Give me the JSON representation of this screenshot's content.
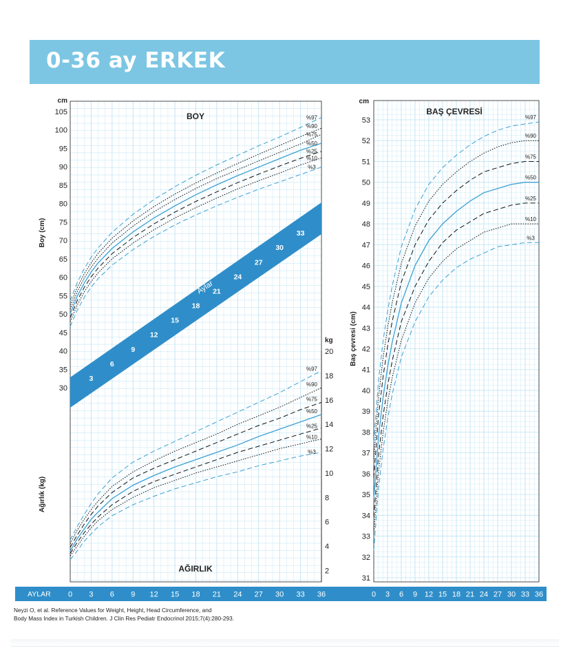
{
  "title": "0-36 ay ERKEK",
  "colors": {
    "banner": "#7cc6e3",
    "grid": "#bde3f3",
    "band": "#2f8ec9",
    "axis_bar": "#2f8ec9",
    "median_line": "#3a9fd3"
  },
  "bottom_axis": {
    "label": "AYLAR",
    "ticks": [
      "0",
      "3",
      "6",
      "9",
      "12",
      "15",
      "18",
      "21",
      "24",
      "27",
      "30",
      "33",
      "36"
    ]
  },
  "citation": {
    "line1": "Neyzi O, et al. Reference Values for Weight, Height, Head Circumference, and",
    "line2": "Body Mass Index in Turkish Children. J Clin Res Pediatr Endocrinol 2015;7(4):280-293."
  },
  "chart_data": [
    {
      "type": "line",
      "title": "BOY",
      "ylabel": "Boy (cm)",
      "yunit": "cm",
      "xlabel": "AYLAR",
      "xlim": [
        0,
        36
      ],
      "ylim": [
        25,
        105
      ],
      "yticks": [
        30,
        35,
        40,
        45,
        50,
        55,
        60,
        65,
        70,
        75,
        80,
        85,
        90,
        95,
        100,
        105
      ],
      "grid": true,
      "x": [
        0,
        1,
        2,
        3,
        4,
        6,
        9,
        12,
        15,
        18,
        21,
        24,
        27,
        30,
        33,
        36
      ],
      "series": [
        {
          "name": "%97",
          "style": "dashed",
          "values": [
            53.6,
            58.5,
            62.3,
            65.4,
            68.0,
            72.2,
            77.1,
            81.1,
            84.6,
            87.7,
            90.5,
            93.1,
            95.7,
            98.1,
            100.7,
            103.4
          ]
        },
        {
          "name": "%90",
          "style": "dotted",
          "values": [
            52.4,
            57.2,
            60.9,
            63.9,
            66.5,
            70.6,
            75.3,
            79.2,
            82.6,
            85.6,
            88.3,
            90.9,
            93.4,
            95.8,
            98.2,
            100.5
          ]
        },
        {
          "name": "%75",
          "style": "dotted",
          "values": [
            51.3,
            56.0,
            59.7,
            62.7,
            65.2,
            69.3,
            73.9,
            77.8,
            81.1,
            84.1,
            86.8,
            89.2,
            91.6,
            93.9,
            96.2,
            98.8
          ]
        },
        {
          "name": "%50",
          "style": "solid",
          "values": [
            50.1,
            54.8,
            58.4,
            61.4,
            63.9,
            67.8,
            72.3,
            76.1,
            79.4,
            82.4,
            85.1,
            87.6,
            89.9,
            92.2,
            94.5,
            96.4
          ]
        },
        {
          "name": "%25",
          "style": "dashed",
          "values": [
            49.0,
            53.6,
            57.2,
            60.1,
            62.5,
            66.4,
            70.8,
            74.5,
            77.7,
            80.6,
            83.2,
            85.7,
            88.0,
            90.2,
            92.3,
            94.2
          ]
        },
        {
          "name": "%10",
          "style": "dotted",
          "values": [
            47.9,
            52.4,
            56.0,
            58.8,
            61.2,
            65.0,
            69.3,
            72.9,
            76.1,
            78.9,
            81.5,
            84.0,
            86.2,
            88.3,
            90.5,
            92.4
          ]
        },
        {
          "name": "%3",
          "style": "dashed",
          "values": [
            46.6,
            51.0,
            54.5,
            57.3,
            59.6,
            63.3,
            67.5,
            71.1,
            74.2,
            76.9,
            79.4,
            81.7,
            83.9,
            85.9,
            87.9,
            89.9
          ]
        }
      ],
      "age_band": {
        "label": "Aylar",
        "month_labels": [
          {
            "m": 3,
            "text": "3"
          },
          {
            "m": 6,
            "text": "6"
          },
          {
            "m": 9,
            "text": "9"
          },
          {
            "m": 12,
            "text": "12"
          },
          {
            "m": 15,
            "text": "15"
          },
          {
            "m": 18,
            "text": "18"
          },
          {
            "m": 21,
            "text": "21"
          },
          {
            "m": 24,
            "text": "24"
          },
          {
            "m": 27,
            "text": "27"
          },
          {
            "m": 30,
            "text": "30"
          },
          {
            "m": 33,
            "text": "33"
          }
        ]
      }
    },
    {
      "type": "line",
      "title": "AĞIRLIK",
      "ylabel": "Ağırlık (kg)",
      "yunit": "kg",
      "xlabel": "AYLAR",
      "xlim": [
        0,
        36
      ],
      "ylim": [
        2,
        20
      ],
      "yticks": [
        2,
        4,
        6,
        8,
        10,
        12,
        14,
        16,
        18,
        20
      ],
      "grid": true,
      "x": [
        0,
        1,
        2,
        3,
        4,
        6,
        9,
        12,
        15,
        18,
        21,
        24,
        27,
        30,
        33,
        36
      ],
      "series": [
        {
          "name": "%97",
          "style": "dashed",
          "values": [
            4.5,
            5.6,
            6.6,
            7.5,
            8.3,
            9.6,
            10.9,
            11.8,
            12.6,
            13.4,
            14.2,
            15.0,
            15.8,
            16.6,
            17.5,
            18.4
          ]
        },
        {
          "name": "%90",
          "style": "dotted",
          "values": [
            4.2,
            5.3,
            6.2,
            7.0,
            7.7,
            8.9,
            10.1,
            11.0,
            11.8,
            12.5,
            13.2,
            14.0,
            14.7,
            15.4,
            16.2,
            17.0
          ]
        },
        {
          "name": "%75",
          "style": "dashed",
          "values": [
            3.9,
            4.9,
            5.8,
            6.6,
            7.3,
            8.4,
            9.6,
            10.4,
            11.1,
            11.8,
            12.5,
            13.2,
            13.9,
            14.5,
            15.2,
            15.8
          ]
        },
        {
          "name": "%50",
          "style": "solid",
          "values": [
            3.6,
            4.6,
            5.4,
            6.2,
            6.8,
            7.9,
            9.0,
            9.8,
            10.5,
            11.1,
            11.7,
            12.3,
            13.0,
            13.6,
            14.2,
            14.8
          ]
        },
        {
          "name": "%25",
          "style": "dashed",
          "values": [
            3.4,
            4.3,
            5.1,
            5.8,
            6.4,
            7.4,
            8.5,
            9.3,
            9.9,
            10.5,
            11.1,
            11.7,
            12.2,
            12.7,
            13.2,
            13.7
          ]
        },
        {
          "name": "%10",
          "style": "dotted",
          "values": [
            3.2,
            4.0,
            4.8,
            5.5,
            6.1,
            7.0,
            8.0,
            8.8,
            9.4,
            10.0,
            10.5,
            11.0,
            11.5,
            12.0,
            12.4,
            12.8
          ]
        },
        {
          "name": "%3",
          "style": "dashed",
          "values": [
            2.9,
            3.6,
            4.4,
            5.0,
            5.6,
            6.5,
            7.4,
            8.1,
            8.7,
            9.2,
            9.7,
            10.1,
            10.6,
            11.0,
            11.4,
            11.7
          ]
        }
      ]
    },
    {
      "type": "line",
      "title": "BAŞ ÇEVRESİ",
      "ylabel": "Baş çevresi (cm)",
      "yunit": "cm",
      "xlabel": "AYLAR",
      "xlim": [
        0,
        36
      ],
      "ylim": [
        31,
        53
      ],
      "yticks": [
        31,
        32,
        33,
        34,
        35,
        36,
        37,
        38,
        39,
        40,
        41,
        42,
        43,
        44,
        45,
        46,
        47,
        48,
        49,
        50,
        51,
        52,
        53
      ],
      "grid": true,
      "x": [
        0,
        1,
        2,
        3,
        4,
        6,
        9,
        12,
        15,
        18,
        21,
        24,
        27,
        30,
        33,
        36
      ],
      "series": [
        {
          "name": "%97",
          "style": "dashed",
          "values": [
            37.5,
            40.4,
            42.3,
            43.8,
            45.0,
            46.9,
            48.7,
            49.9,
            50.7,
            51.3,
            51.8,
            52.2,
            52.5,
            52.7,
            52.8,
            52.9
          ]
        },
        {
          "name": "%90",
          "style": "dotted",
          "values": [
            36.7,
            39.6,
            41.5,
            43.0,
            44.2,
            46.1,
            47.9,
            49.1,
            49.9,
            50.5,
            51.0,
            51.4,
            51.7,
            51.9,
            52.0,
            52.0
          ]
        },
        {
          "name": "%75",
          "style": "dashed",
          "values": [
            35.8,
            38.7,
            40.6,
            42.1,
            43.3,
            45.2,
            47.0,
            48.2,
            49.0,
            49.6,
            50.1,
            50.5,
            50.7,
            50.9,
            51.0,
            51.0
          ]
        },
        {
          "name": "%50",
          "style": "solid",
          "values": [
            34.8,
            37.7,
            39.6,
            41.1,
            42.3,
            44.2,
            46.0,
            47.2,
            48.0,
            48.6,
            49.1,
            49.5,
            49.7,
            49.9,
            50.0,
            50.0
          ]
        },
        {
          "name": "%25",
          "style": "dashed",
          "values": [
            33.9,
            36.8,
            38.7,
            40.2,
            41.4,
            43.3,
            45.0,
            46.2,
            47.1,
            47.7,
            48.1,
            48.5,
            48.7,
            48.9,
            49.0,
            49.0
          ]
        },
        {
          "name": "%10",
          "style": "dotted",
          "values": [
            33.1,
            36.0,
            37.9,
            39.4,
            40.6,
            42.4,
            44.2,
            45.4,
            46.2,
            46.8,
            47.2,
            47.6,
            47.8,
            48.0,
            48.0,
            48.0
          ]
        },
        {
          "name": "%3",
          "style": "dashed",
          "values": [
            32.3,
            35.2,
            37.1,
            38.6,
            39.8,
            41.6,
            43.3,
            44.5,
            45.3,
            45.9,
            46.3,
            46.6,
            46.9,
            47.0,
            47.1,
            47.1
          ]
        }
      ]
    }
  ]
}
